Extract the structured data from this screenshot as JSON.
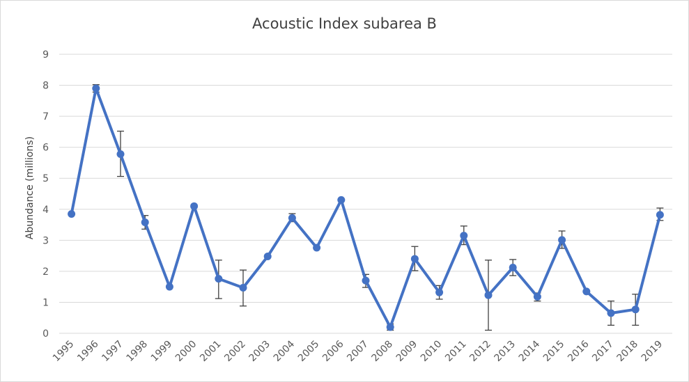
{
  "chart_data": {
    "type": "line",
    "title": "Acoustic Index subarea B",
    "xlabel": "",
    "ylabel": "Abundance (millions)",
    "ylim": [
      0,
      9
    ],
    "yticks": [
      "0",
      "1",
      "2",
      "3",
      "4",
      "5",
      "6",
      "7",
      "8",
      "9"
    ],
    "grid": true,
    "legend": "none",
    "color": "#4472c4",
    "categories": [
      "1995",
      "1996",
      "1997",
      "1998",
      "1999",
      "2000",
      "2001",
      "2002",
      "2003",
      "2004",
      "2005",
      "2006",
      "2007",
      "2008",
      "2009",
      "2010",
      "2011",
      "2012",
      "2013",
      "2014",
      "2015",
      "2016",
      "2017",
      "2018",
      "2019"
    ],
    "series": [
      {
        "values": [
          3.85,
          7.9,
          5.78,
          3.58,
          1.5,
          4.1,
          1.76,
          1.47,
          2.48,
          3.72,
          2.76,
          4.3,
          1.7,
          0.2,
          2.4,
          1.32,
          3.15,
          1.23,
          2.12,
          1.18,
          3.01,
          1.35,
          0.65,
          0.77,
          3.82
        ],
        "error_low": [
          null,
          7.78,
          5.06,
          3.36,
          null,
          null,
          1.12,
          0.88,
          null,
          3.6,
          null,
          null,
          1.48,
          0.1,
          2.02,
          1.1,
          2.86,
          0.1,
          1.86,
          1.04,
          2.74,
          null,
          0.26,
          0.26,
          3.64
        ],
        "error_high": [
          null,
          8.02,
          6.52,
          3.8,
          null,
          null,
          2.36,
          2.04,
          null,
          3.86,
          null,
          null,
          1.9,
          0.3,
          2.8,
          1.54,
          3.46,
          2.36,
          2.38,
          1.3,
          3.3,
          null,
          1.04,
          1.26,
          4.04
        ]
      }
    ]
  }
}
